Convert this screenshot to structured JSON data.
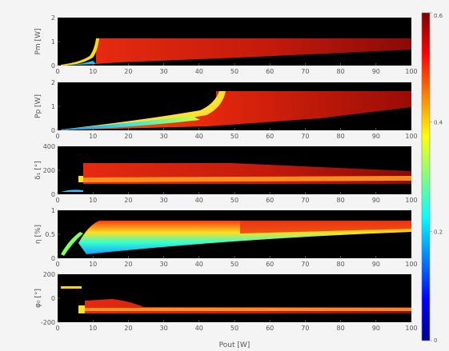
{
  "chart_data": {
    "type": "heatmap",
    "x_range": [
      0,
      100
    ],
    "x_ticks": [
      "0",
      "10",
      "20",
      "30",
      "40",
      "50",
      "60",
      "70",
      "80",
      "90",
      "100"
    ],
    "xlabel": "Pout [W]",
    "colorbar": {
      "colormap": "jet",
      "range": [
        0,
        0.6
      ],
      "ticks": [
        "0",
        "0.2",
        "0.4",
        "0.6"
      ]
    },
    "panels": [
      {
        "ylabel": "Pm [W]",
        "ylim": [
          0,
          2
        ],
        "yticks": [
          "0",
          "1",
          "2"
        ],
        "boundary_x": 17,
        "plateau_value": 1.25
      },
      {
        "ylabel": "Pp [W]",
        "ylim": [
          0,
          2
        ],
        "yticks": [
          "0",
          "1",
          "2"
        ],
        "boundary_x": 47,
        "plateau_value": 1.8
      },
      {
        "ylabel": "δ₁ [°]",
        "ylim": [
          0,
          400
        ],
        "yticks": [
          "0",
          "200",
          "400"
        ],
        "boundary_x": 7,
        "plateau_value": 250
      },
      {
        "ylabel": "η [%]",
        "ylim": [
          0,
          1
        ],
        "yticks": [
          "0",
          "0.5",
          "1"
        ],
        "boundary_x": 7,
        "plateau_value": 0.8
      },
      {
        "ylabel": "φ₀ [°]",
        "ylim": [
          -200,
          200
        ],
        "yticks": [
          "-200",
          "0",
          "200"
        ],
        "boundary_x": 7,
        "plateau_value": -50
      }
    ]
  }
}
